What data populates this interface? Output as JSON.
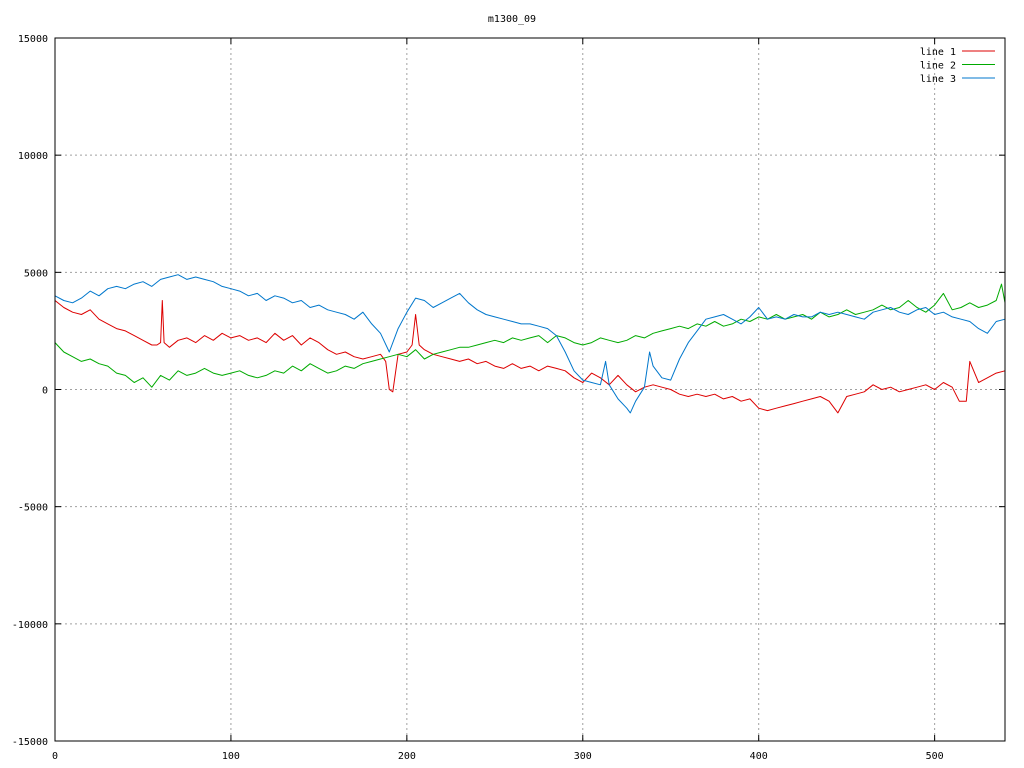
{
  "chart_data": {
    "type": "line",
    "title": "m1300_09",
    "xlabel": "",
    "ylabel": "",
    "xlim": [
      0,
      540
    ],
    "ylim": [
      -15000,
      15000
    ],
    "xticks": [
      0,
      100,
      200,
      300,
      400,
      500
    ],
    "yticks": [
      -15000,
      -10000,
      -5000,
      0,
      5000,
      10000,
      15000
    ],
    "grid": true,
    "legend_position": "top-right",
    "series": [
      {
        "name": "line 1",
        "color": "#dd0000",
        "x": [
          0,
          5,
          10,
          15,
          20,
          25,
          30,
          35,
          40,
          45,
          50,
          55,
          58,
          60,
          61,
          62,
          65,
          70,
          75,
          80,
          85,
          90,
          95,
          100,
          105,
          110,
          115,
          120,
          125,
          130,
          135,
          140,
          145,
          150,
          155,
          160,
          165,
          170,
          175,
          180,
          185,
          188,
          190,
          192,
          195,
          200,
          203,
          205,
          207,
          210,
          215,
          220,
          225,
          230,
          235,
          240,
          245,
          250,
          255,
          260,
          265,
          270,
          275,
          280,
          285,
          290,
          295,
          300,
          305,
          310,
          315,
          320,
          325,
          330,
          335,
          340,
          345,
          350,
          355,
          360,
          365,
          370,
          375,
          380,
          385,
          390,
          395,
          400,
          405,
          410,
          415,
          420,
          425,
          430,
          435,
          440,
          445,
          450,
          455,
          460,
          465,
          470,
          475,
          480,
          485,
          490,
          495,
          500,
          505,
          510,
          514,
          515,
          518,
          520,
          525,
          530,
          535,
          540
        ],
        "y": [
          3800,
          3500,
          3300,
          3200,
          3400,
          3000,
          2800,
          2600,
          2500,
          2300,
          2100,
          1900,
          1900,
          2000,
          3800,
          2000,
          1800,
          2100,
          2200,
          2000,
          2300,
          2100,
          2400,
          2200,
          2300,
          2100,
          2200,
          2000,
          2400,
          2100,
          2300,
          1900,
          2200,
          2000,
          1700,
          1500,
          1600,
          1400,
          1300,
          1400,
          1500,
          1200,
          0,
          -100,
          1500,
          1600,
          1900,
          3200,
          1900,
          1700,
          1500,
          1400,
          1300,
          1200,
          1300,
          1100,
          1200,
          1000,
          900,
          1100,
          900,
          1000,
          800,
          1000,
          900,
          800,
          500,
          300,
          700,
          500,
          200,
          600,
          200,
          -100,
          100,
          200,
          100,
          0,
          -200,
          -300,
          -200,
          -300,
          -200,
          -400,
          -300,
          -500,
          -400,
          -800,
          -900,
          -800,
          -700,
          -600,
          -500,
          -400,
          -300,
          -500,
          -1000,
          -300,
          -200,
          -100,
          200,
          0,
          100,
          -100,
          0,
          100,
          200,
          0,
          300,
          100,
          -500,
          -500,
          -500,
          1200,
          300,
          500,
          700,
          800
        ]
      },
      {
        "name": "line 2",
        "color": "#00aa00",
        "x": [
          0,
          5,
          10,
          15,
          20,
          25,
          30,
          35,
          40,
          45,
          50,
          55,
          60,
          65,
          70,
          75,
          80,
          85,
          90,
          95,
          100,
          105,
          110,
          115,
          120,
          125,
          130,
          135,
          140,
          145,
          150,
          155,
          160,
          165,
          170,
          175,
          180,
          185,
          190,
          195,
          200,
          205,
          210,
          215,
          220,
          225,
          230,
          235,
          240,
          245,
          250,
          255,
          260,
          265,
          270,
          275,
          280,
          285,
          290,
          295,
          300,
          305,
          310,
          315,
          320,
          325,
          330,
          335,
          340,
          345,
          350,
          355,
          360,
          365,
          370,
          375,
          380,
          385,
          390,
          395,
          400,
          405,
          410,
          415,
          420,
          425,
          430,
          435,
          440,
          445,
          450,
          455,
          460,
          465,
          470,
          475,
          480,
          485,
          490,
          495,
          500,
          505,
          510,
          515,
          520,
          525,
          530,
          535,
          538,
          540
        ],
        "y": [
          2000,
          1600,
          1400,
          1200,
          1300,
          1100,
          1000,
          700,
          600,
          300,
          500,
          100,
          600,
          400,
          800,
          600,
          700,
          900,
          700,
          600,
          700,
          800,
          600,
          500,
          600,
          800,
          700,
          1000,
          800,
          1100,
          900,
          700,
          800,
          1000,
          900,
          1100,
          1200,
          1300,
          1400,
          1500,
          1400,
          1700,
          1300,
          1500,
          1600,
          1700,
          1800,
          1800,
          1900,
          2000,
          2100,
          2000,
          2200,
          2100,
          2200,
          2300,
          2000,
          2300,
          2200,
          2000,
          1900,
          2000,
          2200,
          2100,
          2000,
          2100,
          2300,
          2200,
          2400,
          2500,
          2600,
          2700,
          2600,
          2800,
          2700,
          2900,
          2700,
          2800,
          3000,
          2900,
          3100,
          3000,
          3200,
          3000,
          3100,
          3200,
          3000,
          3300,
          3100,
          3200,
          3400,
          3200,
          3300,
          3400,
          3600,
          3400,
          3500,
          3800,
          3500,
          3300,
          3600,
          4100,
          3400,
          3500,
          3700,
          3500,
          3600,
          3800,
          4500,
          3700
        ]
      },
      {
        "name": "line 3",
        "color": "#0077cc",
        "x": [
          0,
          5,
          10,
          15,
          20,
          25,
          30,
          35,
          40,
          45,
          50,
          55,
          60,
          65,
          70,
          75,
          80,
          85,
          90,
          95,
          100,
          105,
          110,
          115,
          120,
          125,
          130,
          135,
          140,
          145,
          150,
          155,
          160,
          165,
          170,
          175,
          180,
          185,
          190,
          195,
          200,
          205,
          210,
          215,
          220,
          225,
          230,
          235,
          240,
          245,
          250,
          255,
          260,
          265,
          270,
          275,
          280,
          285,
          290,
          295,
          300,
          305,
          310,
          313,
          315,
          320,
          325,
          327,
          330,
          335,
          338,
          340,
          345,
          350,
          355,
          360,
          365,
          370,
          375,
          380,
          385,
          390,
          395,
          400,
          405,
          410,
          415,
          420,
          425,
          430,
          435,
          440,
          445,
          450,
          455,
          460,
          465,
          470,
          475,
          480,
          485,
          490,
          495,
          500,
          505,
          510,
          515,
          520,
          525,
          530,
          535,
          540
        ],
        "y": [
          4000,
          3800,
          3700,
          3900,
          4200,
          4000,
          4300,
          4400,
          4300,
          4500,
          4600,
          4400,
          4700,
          4800,
          4900,
          4700,
          4800,
          4700,
          4600,
          4400,
          4300,
          4200,
          4000,
          4100,
          3800,
          4000,
          3900,
          3700,
          3800,
          3500,
          3600,
          3400,
          3300,
          3200,
          3000,
          3300,
          2800,
          2400,
          1600,
          2600,
          3300,
          3900,
          3800,
          3500,
          3700,
          3900,
          4100,
          3700,
          3400,
          3200,
          3100,
          3000,
          2900,
          2800,
          2800,
          2700,
          2600,
          2300,
          1600,
          800,
          400,
          300,
          200,
          1200,
          200,
          -400,
          -800,
          -1000,
          -500,
          100,
          1600,
          1000,
          500,
          400,
          1300,
          2000,
          2500,
          3000,
          3100,
          3200,
          3000,
          2800,
          3100,
          3500,
          3000,
          3100,
          3000,
          3200,
          3100,
          3100,
          3300,
          3200,
          3300,
          3200,
          3100,
          3000,
          3300,
          3400,
          3500,
          3300,
          3200,
          3400,
          3500,
          3200,
          3300,
          3100,
          3000,
          2900,
          2600,
          2400,
          2900,
          3000
        ]
      }
    ]
  }
}
